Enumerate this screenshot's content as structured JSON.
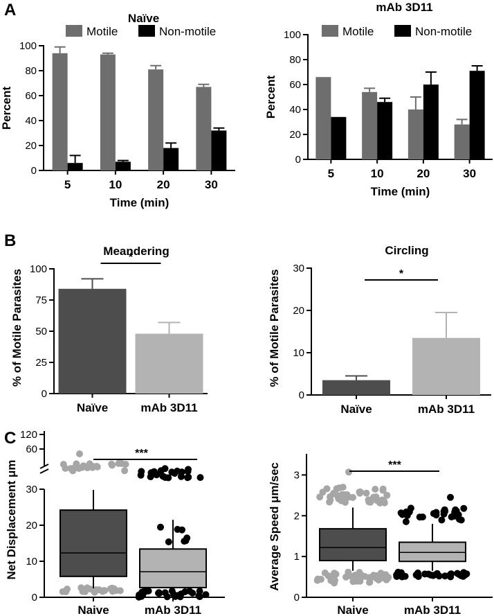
{
  "panels": {
    "a": "A",
    "b": "B",
    "c": "C"
  },
  "colors": {
    "motile": "#6e6e6e",
    "nonmotile": "#000000",
    "naive_dark": "#4d4d4d",
    "mab_light": "#b3b3b3",
    "naive_dots": "#a6a6a6",
    "mab_dots": "#000000"
  },
  "chart_data": [
    {
      "id": "a1",
      "type": "bar",
      "title": "Naïve",
      "xlabel": "Time (min)",
      "ylabel": "Percent",
      "categories": [
        "5",
        "10",
        "20",
        "30"
      ],
      "ylim": [
        0,
        100
      ],
      "yticks": [
        "0",
        "20",
        "40",
        "60",
        "80",
        "100"
      ],
      "legend": [
        "Motile",
        "Non-motile"
      ],
      "series": [
        {
          "name": "Motile",
          "values": [
            94,
            93,
            81,
            67
          ],
          "errors": [
            5,
            1,
            3,
            2
          ]
        },
        {
          "name": "Non-motile",
          "values": [
            6,
            7,
            18,
            32
          ],
          "errors": [
            6,
            1,
            4,
            2
          ]
        }
      ]
    },
    {
      "id": "a2",
      "type": "bar",
      "title": "mAb 3D11",
      "xlabel": "Time (min)",
      "ylabel": "Percent",
      "categories": [
        "5",
        "10",
        "20",
        "30"
      ],
      "ylim": [
        0,
        100
      ],
      "yticks": [
        "0",
        "20",
        "40",
        "60",
        "80",
        "100"
      ],
      "legend": [
        "Motile",
        "Non-motile"
      ],
      "series": [
        {
          "name": "Motile",
          "values": [
            66,
            54,
            40,
            28
          ],
          "errors": [
            0,
            3,
            10,
            4
          ]
        },
        {
          "name": "Non-motile",
          "values": [
            34,
            46,
            60,
            71
          ],
          "errors": [
            0,
            3,
            10,
            4
          ]
        }
      ]
    },
    {
      "id": "b1",
      "type": "bar",
      "title": "Meandering",
      "ylabel": "% of Motile Parasites",
      "categories": [
        "Naïve",
        "mAb 3D11"
      ],
      "ylim": [
        0,
        100
      ],
      "yticks": [
        "0",
        "25",
        "50",
        "75",
        "100"
      ],
      "values": [
        84,
        48
      ],
      "errors": [
        8,
        9
      ],
      "significance": "*"
    },
    {
      "id": "b2",
      "type": "bar",
      "title": "Circling",
      "ylabel": "% of Motile Parasites",
      "categories": [
        "Naïve",
        "mAb 3D11"
      ],
      "ylim": [
        0,
        30
      ],
      "yticks": [
        "0",
        "10",
        "20",
        "30"
      ],
      "values": [
        3.5,
        13.5
      ],
      "errors": [
        1,
        6
      ],
      "significance": "*"
    },
    {
      "id": "c1",
      "type": "box",
      "ylabel": "Net Displacement μm",
      "categories": [
        "Naive",
        "mAb 3D11"
      ],
      "ylim_lower": [
        0,
        30
      ],
      "yticks_lower": [
        "0",
        "10",
        "20",
        "30"
      ],
      "ylim_upper": [
        60,
        120
      ],
      "yticks_upper": [
        "60",
        "120"
      ],
      "boxes": [
        {
          "whisker_low": 2.5,
          "q1": 5.8,
          "median": 12.3,
          "q3": 24.2,
          "whisker_high": 29.8
        },
        {
          "whisker_low": 0.6,
          "q1": 2.7,
          "median": 7.1,
          "q3": 13.4,
          "whisker_high": 21.5
        }
      ],
      "significance": "***"
    },
    {
      "id": "c2",
      "type": "box",
      "ylabel": "Average Speed μm/sec",
      "categories": [
        "Naive",
        "mAb 3D11"
      ],
      "ylim": [
        0,
        3.5
      ],
      "yticks": [
        "0",
        "1",
        "2",
        "3"
      ],
      "boxes": [
        {
          "whisker_low": 0.65,
          "q1": 0.9,
          "median": 1.22,
          "q3": 1.68,
          "whisker_high": 2.2
        },
        {
          "whisker_low": 0.65,
          "q1": 0.88,
          "median": 1.1,
          "q3": 1.35,
          "whisker_high": 1.8
        }
      ],
      "significance": "***"
    }
  ]
}
